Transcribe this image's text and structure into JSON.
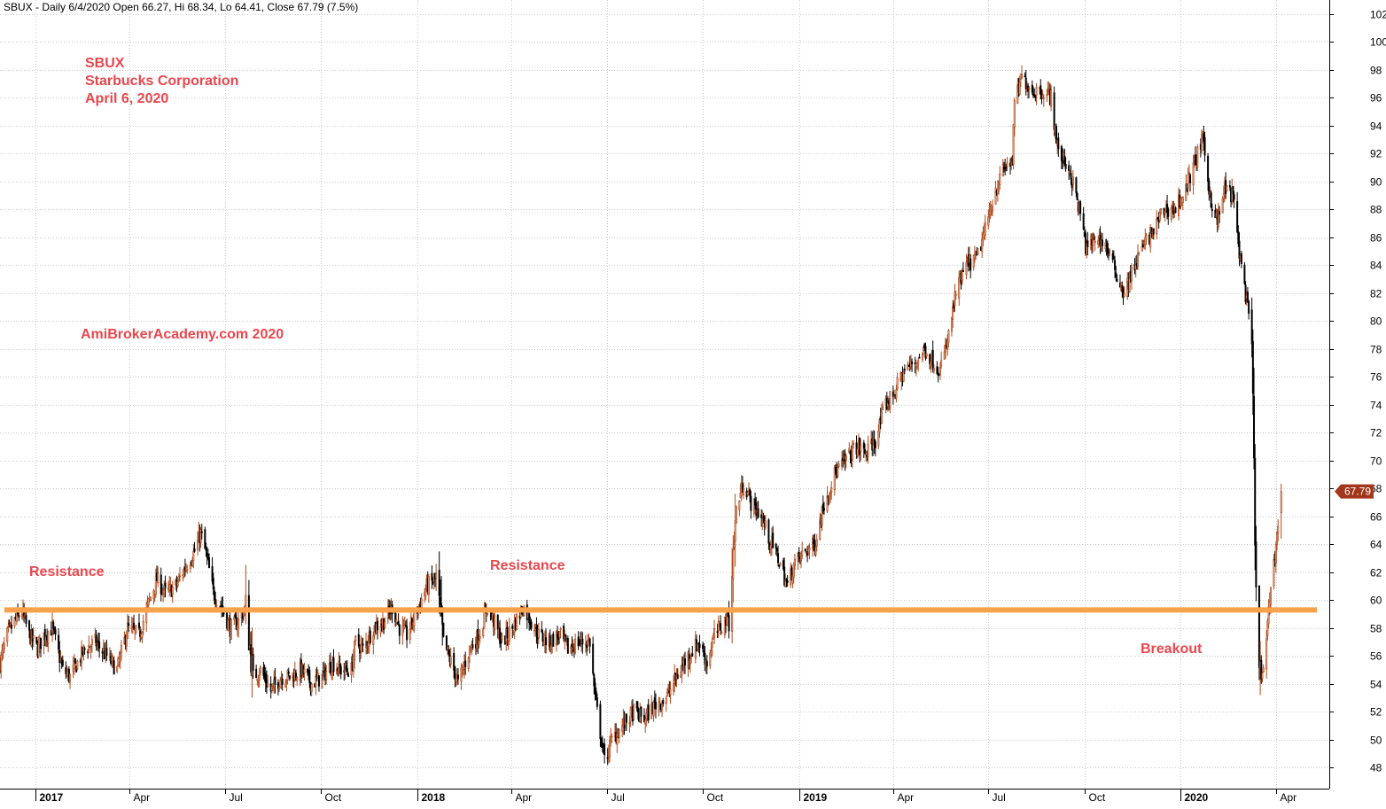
{
  "header": {
    "text": "SBUX - Daily 6/4/2020 Open 66.27, Hi 68.34, Lo 64.41, Close 67.79 (7.5%)"
  },
  "annotations": {
    "title_lines": [
      "SBUX",
      "Starbucks Corporation",
      "April 6, 2020"
    ],
    "watermark": "AmiBrokerAcademy.com  2020",
    "resistance_left": "Resistance",
    "resistance_mid": "Resistance",
    "breakout": "Breakout"
  },
  "price_tag": "67.79",
  "colors": {
    "up_candle": "#b24a1a",
    "down_candle": "#000000",
    "resistance_line": "#f7a14a",
    "annotation": "#e8474d",
    "grid": "#c8c8c8",
    "price_tag": "#a2371c"
  },
  "chart_data": {
    "type": "candlestick",
    "symbol": "SBUX",
    "interval": "Daily",
    "ylim": [
      46.5,
      103
    ],
    "y_ticks": [
      48,
      50,
      52,
      54,
      56,
      58,
      60,
      62,
      64,
      66,
      68,
      70,
      72,
      74,
      76,
      78,
      80,
      82,
      84,
      86,
      88,
      90,
      92,
      94,
      96,
      98,
      100,
      102
    ],
    "x_ticks": [
      {
        "label": "2017",
        "year": true
      },
      {
        "label": "Apr",
        "year": false
      },
      {
        "label": "Jul",
        "year": false
      },
      {
        "label": "Oct",
        "year": false
      },
      {
        "label": "2018",
        "year": true
      },
      {
        "label": "Apr",
        "year": false
      },
      {
        "label": "Jul",
        "year": false
      },
      {
        "label": "Oct",
        "year": false
      },
      {
        "label": "2019",
        "year": true
      },
      {
        "label": "Apr",
        "year": false
      },
      {
        "label": "Jul",
        "year": false
      },
      {
        "label": "Oct",
        "year": false
      },
      {
        "label": "2020",
        "year": true
      },
      {
        "label": "Apr",
        "year": false
      }
    ],
    "x_tick_dates": [
      "2017-01-01",
      "2017-04-01",
      "2017-07-01",
      "2017-10-01",
      "2018-01-01",
      "2018-04-01",
      "2018-07-01",
      "2018-10-01",
      "2019-01-01",
      "2019-04-01",
      "2019-07-01",
      "2019-10-01",
      "2020-01-01",
      "2020-04-01"
    ],
    "x_range": [
      "2016-11-28",
      "2020-05-22"
    ],
    "resistance_level": 59.3,
    "last_close": 67.79,
    "last_bar": {
      "date": "2020-04-06",
      "open": 66.27,
      "high": 68.34,
      "low": 64.41,
      "close": 67.79,
      "change_pct": 7.5
    },
    "close_path": [
      [
        "2016-11-28",
        55.5
      ],
      [
        "2016-12-05",
        57.5
      ],
      [
        "2016-12-12",
        58.5
      ],
      [
        "2016-12-19",
        59.2
      ],
      [
        "2016-12-26",
        57.5
      ],
      [
        "2017-01-03",
        56.5
      ],
      [
        "2017-01-09",
        57.5
      ],
      [
        "2017-01-17",
        58.0
      ],
      [
        "2017-01-27",
        55.0
      ],
      [
        "2017-02-03",
        54.5
      ],
      [
        "2017-02-10",
        55.5
      ],
      [
        "2017-02-17",
        56.5
      ],
      [
        "2017-02-27",
        57.0
      ],
      [
        "2017-03-10",
        56.0
      ],
      [
        "2017-03-20",
        55.0
      ],
      [
        "2017-03-30",
        58.0
      ],
      [
        "2017-04-10",
        57.5
      ],
      [
        "2017-04-20",
        60.0
      ],
      [
        "2017-04-27",
        61.5
      ],
      [
        "2017-05-05",
        60.5
      ],
      [
        "2017-05-15",
        61.0
      ],
      [
        "2017-05-25",
        62.5
      ],
      [
        "2017-06-02",
        63.5
      ],
      [
        "2017-06-08",
        64.8
      ],
      [
        "2017-06-14",
        63.0
      ],
      [
        "2017-06-20",
        60.5
      ],
      [
        "2017-06-28",
        59.5
      ],
      [
        "2017-07-06",
        58.0
      ],
      [
        "2017-07-14",
        58.5
      ],
      [
        "2017-07-21",
        59.5
      ],
      [
        "2017-07-28",
        54.5
      ],
      [
        "2017-08-04",
        55.0
      ],
      [
        "2017-08-14",
        53.5
      ],
      [
        "2017-08-24",
        54.5
      ],
      [
        "2017-09-01",
        54.5
      ],
      [
        "2017-09-12",
        55.0
      ],
      [
        "2017-09-22",
        54.0
      ],
      [
        "2017-10-02",
        54.5
      ],
      [
        "2017-10-12",
        55.5
      ],
      [
        "2017-10-20",
        55.0
      ],
      [
        "2017-10-30",
        55.0
      ],
      [
        "2017-11-03",
        57.0
      ],
      [
        "2017-11-10",
        56.5
      ],
      [
        "2017-11-20",
        58.0
      ],
      [
        "2017-11-30",
        58.5
      ],
      [
        "2017-12-08",
        59.5
      ],
      [
        "2017-12-15",
        58.0
      ],
      [
        "2017-12-22",
        57.5
      ],
      [
        "2018-01-02",
        59.5
      ],
      [
        "2018-01-10",
        61.0
      ],
      [
        "2018-01-19",
        61.5
      ],
      [
        "2018-01-26",
        57.0
      ],
      [
        "2018-02-05",
        55.0
      ],
      [
        "2018-02-09",
        54.0
      ],
      [
        "2018-02-20",
        56.5
      ],
      [
        "2018-03-01",
        57.5
      ],
      [
        "2018-03-09",
        59.5
      ],
      [
        "2018-03-15",
        58.5
      ],
      [
        "2018-03-23",
        57.0
      ],
      [
        "2018-04-02",
        58.0
      ],
      [
        "2018-04-12",
        59.5
      ],
      [
        "2018-04-20",
        58.5
      ],
      [
        "2018-04-27",
        57.5
      ],
      [
        "2018-05-07",
        57.0
      ],
      [
        "2018-05-17",
        57.5
      ],
      [
        "2018-05-25",
        56.5
      ],
      [
        "2018-06-04",
        57.0
      ],
      [
        "2018-06-15",
        57.0
      ],
      [
        "2018-06-20",
        53.0
      ],
      [
        "2018-06-25",
        50.5
      ],
      [
        "2018-06-29",
        48.5
      ],
      [
        "2018-07-06",
        50.0
      ],
      [
        "2018-07-16",
        51.0
      ],
      [
        "2018-07-27",
        52.0
      ],
      [
        "2018-08-06",
        51.5
      ],
      [
        "2018-08-16",
        52.5
      ],
      [
        "2018-08-27",
        53.0
      ],
      [
        "2018-09-06",
        54.5
      ],
      [
        "2018-09-17",
        56.0
      ],
      [
        "2018-09-27",
        57.0
      ],
      [
        "2018-10-05",
        55.5
      ],
      [
        "2018-10-12",
        57.5
      ],
      [
        "2018-10-22",
        58.5
      ],
      [
        "2018-10-26",
        59.0
      ],
      [
        "2018-11-02",
        66.5
      ],
      [
        "2018-11-09",
        68.5
      ],
      [
        "2018-11-16",
        67.0
      ],
      [
        "2018-11-26",
        66.0
      ],
      [
        "2018-12-03",
        64.5
      ],
      [
        "2018-12-12",
        63.0
      ],
      [
        "2018-12-21",
        61.0
      ],
      [
        "2018-12-27",
        62.5
      ],
      [
        "2019-01-07",
        63.5
      ],
      [
        "2019-01-16",
        64.0
      ],
      [
        "2019-01-25",
        67.0
      ],
      [
        "2019-02-04",
        69.0
      ],
      [
        "2019-02-14",
        70.0
      ],
      [
        "2019-02-25",
        71.0
      ],
      [
        "2019-03-06",
        70.5
      ],
      [
        "2019-03-15",
        71.5
      ],
      [
        "2019-03-25",
        74.0
      ],
      [
        "2019-04-03",
        75.0
      ],
      [
        "2019-04-12",
        76.5
      ],
      [
        "2019-04-22",
        77.0
      ],
      [
        "2019-05-01",
        78.0
      ],
      [
        "2019-05-10",
        77.0
      ],
      [
        "2019-05-16",
        76.5
      ],
      [
        "2019-05-23",
        78.5
      ],
      [
        "2019-05-31",
        82.0
      ],
      [
        "2019-06-10",
        84.0
      ],
      [
        "2019-06-20",
        84.5
      ],
      [
        "2019-06-28",
        86.5
      ],
      [
        "2019-07-08",
        89.5
      ],
      [
        "2019-07-17",
        91.0
      ],
      [
        "2019-07-24",
        91.5
      ],
      [
        "2019-07-26",
        95.5
      ],
      [
        "2019-08-02",
        97.5
      ],
      [
        "2019-08-12",
        96.5
      ],
      [
        "2019-08-22",
        96.5
      ],
      [
        "2019-08-30",
        96.0
      ],
      [
        "2019-09-06",
        92.0
      ],
      [
        "2019-09-16",
        91.0
      ],
      [
        "2019-09-26",
        88.0
      ],
      [
        "2019-10-03",
        85.0
      ],
      [
        "2019-10-11",
        86.0
      ],
      [
        "2019-10-21",
        85.5
      ],
      [
        "2019-10-31",
        83.5
      ],
      [
        "2019-11-08",
        82.0
      ],
      [
        "2019-11-18",
        84.0
      ],
      [
        "2019-11-27",
        85.5
      ],
      [
        "2019-12-06",
        86.5
      ],
      [
        "2019-12-16",
        88.0
      ],
      [
        "2019-12-26",
        88.0
      ],
      [
        "2020-01-06",
        89.5
      ],
      [
        "2020-01-15",
        91.5
      ],
      [
        "2020-01-22",
        93.0
      ],
      [
        "2020-01-29",
        89.0
      ],
      [
        "2020-02-05",
        87.0
      ],
      [
        "2020-02-12",
        89.5
      ],
      [
        "2020-02-20",
        89.0
      ],
      [
        "2020-02-25",
        85.5
      ],
      [
        "2020-03-02",
        82.5
      ],
      [
        "2020-03-09",
        78.5
      ],
      [
        "2020-03-13",
        60.0
      ],
      [
        "2020-03-18",
        54.0
      ],
      [
        "2020-03-23",
        57.0
      ],
      [
        "2020-03-27",
        61.0
      ],
      [
        "2020-04-01",
        64.0
      ],
      [
        "2020-04-06",
        67.79
      ]
    ]
  }
}
